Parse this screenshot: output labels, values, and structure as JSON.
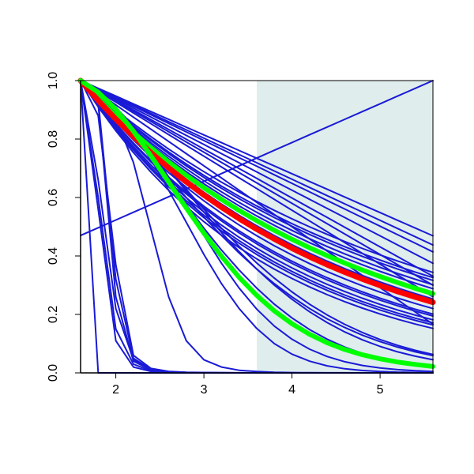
{
  "chart_data": {
    "type": "line",
    "title": "",
    "xlabel": "",
    "ylabel": "",
    "xlim": [
      1.6,
      5.6
    ],
    "ylim": [
      0,
      1
    ],
    "x_ticks": [
      2,
      3,
      4,
      5
    ],
    "x_tick_labels": [
      "2",
      "3",
      "4",
      "5"
    ],
    "y_ticks": [
      0.0,
      0.2,
      0.4,
      0.6,
      0.8,
      1.0
    ],
    "y_tick_labels": [
      "0.0",
      "0.2",
      "0.4",
      "0.6",
      "0.8",
      "1.0"
    ],
    "grid": false,
    "legend": "none",
    "shaded_region": {
      "x_from": 3.6,
      "x_to": 5.6,
      "color": "#dfeded"
    },
    "x_sample": [
      1.6,
      1.8,
      2.0,
      2.2,
      2.4,
      2.6,
      2.8,
      3.0,
      3.2,
      3.4,
      3.6,
      3.8,
      4.0,
      4.2,
      4.4,
      4.6,
      4.8,
      5.0,
      5.2,
      5.4,
      5.6
    ],
    "colors": {
      "blue": "#1a1ad6",
      "red": "#ff0000",
      "green": "#00ff00"
    },
    "series": [
      {
        "color": "blue",
        "width": 2,
        "values": [
          1.0,
          0.9665,
          0.9331,
          0.8996,
          0.8661,
          0.8326,
          0.7992,
          0.7657,
          0.7323,
          0.6988,
          0.6653,
          0.6318,
          0.5984,
          0.5649,
          0.5315,
          0.498,
          0.4645,
          0.4311,
          0.3976,
          0.3641,
          0.3307
        ]
      },
      {
        "color": "blue",
        "width": 2,
        "values": [
          1.0,
          0.9631,
          0.9261,
          0.8892,
          0.8522,
          0.8152,
          0.7783,
          0.7413,
          0.7044,
          0.6674,
          0.6305,
          0.5935,
          0.5566,
          0.5196,
          0.4826,
          0.4457,
          0.4087,
          0.3718,
          0.3348,
          0.2978,
          0.2609
        ]
      },
      {
        "color": "blue",
        "width": 2,
        "values": [
          1.0,
          0.9707,
          0.9414,
          0.9121,
          0.8828,
          0.8535,
          0.8242,
          0.7949,
          0.7656,
          0.7363,
          0.707,
          0.6777,
          0.6484,
          0.6191,
          0.5898,
          0.5605,
          0.5312,
          0.5019,
          0.4726,
          0.4434,
          0.4141
        ]
      },
      {
        "color": "blue",
        "width": 2,
        "values": [
          1.0,
          0.9734,
          0.9469,
          0.9203,
          0.8938,
          0.8672,
          0.8406,
          0.8141,
          0.7875,
          0.7609,
          0.7344,
          0.7078,
          0.6813,
          0.6547,
          0.6281,
          0.6016,
          0.575,
          0.5484,
          0.5219,
          0.4953,
          0.4688
        ]
      },
      {
        "color": "blue",
        "width": 2,
        "values": [
          1.0,
          0.9719,
          0.9438,
          0.9156,
          0.8875,
          0.8594,
          0.8313,
          0.8031,
          0.775,
          0.7469,
          0.7188,
          0.6906,
          0.6625,
          0.6344,
          0.6063,
          0.5781,
          0.55,
          0.5219,
          0.4938,
          0.4656,
          0.4375
        ]
      },
      {
        "color": "blue",
        "width": 2,
        "values": [
          1.0,
          0.9688,
          0.9375,
          0.9063,
          0.875,
          0.8438,
          0.8125,
          0.7813,
          0.75,
          0.7188,
          0.6875,
          0.6563,
          0.625,
          0.5938,
          0.5625,
          0.5313,
          0.5,
          0.4688,
          0.4375,
          0.4063,
          0.375
        ]
      },
      {
        "color": "blue",
        "width": 2,
        "values": [
          1.0,
          0.965,
          0.93,
          0.895,
          0.86,
          0.825,
          0.79,
          0.755,
          0.72,
          0.685,
          0.65,
          0.615,
          0.58,
          0.545,
          0.51,
          0.475,
          0.44,
          0.405,
          0.37,
          0.335,
          0.3
        ]
      },
      {
        "color": "blue",
        "width": 2,
        "values": [
          1.0,
          0.9583,
          0.9167,
          0.875,
          0.8333,
          0.7917,
          0.75,
          0.7083,
          0.6667,
          0.625,
          0.5833,
          0.5417,
          0.5,
          0.4583,
          0.4167,
          0.375,
          0.3333,
          0.2917,
          0.25,
          0.2083,
          0.1667
        ]
      },
      {
        "color": "blue",
        "width": 2,
        "values": [
          1.0,
          0.948,
          0.8988,
          0.8521,
          0.8078,
          0.7658,
          0.726,
          0.6883,
          0.6525,
          0.6186,
          0.5865,
          0.556,
          0.5271,
          0.4997,
          0.4737,
          0.4491,
          0.4258,
          0.4036,
          0.3827,
          0.3628,
          0.3439
        ]
      },
      {
        "color": "blue",
        "width": 2,
        "values": [
          1.0,
          0.9455,
          0.894,
          0.8453,
          0.7993,
          0.7557,
          0.7146,
          0.6756,
          0.6388,
          0.604,
          0.5711,
          0.54,
          0.5106,
          0.4828,
          0.4565,
          0.4316,
          0.4081,
          0.3859,
          0.3649,
          0.345,
          0.3262
        ]
      },
      {
        "color": "blue",
        "width": 2,
        "values": [
          1.0,
          0.9441,
          0.8913,
          0.8415,
          0.7945,
          0.7501,
          0.7082,
          0.6686,
          0.6313,
          0.596,
          0.5627,
          0.5313,
          0.5016,
          0.4736,
          0.4471,
          0.4221,
          0.3985,
          0.3763,
          0.3552,
          0.3354,
          0.3166
        ]
      },
      {
        "color": "blue",
        "width": 2,
        "values": [
          1.0,
          0.9418,
          0.887,
          0.8354,
          0.7868,
          0.7411,
          0.698,
          0.6574,
          0.6192,
          0.5831,
          0.5492,
          0.5173,
          0.4872,
          0.4589,
          0.4322,
          0.407,
          0.3834,
          0.3611,
          0.3401,
          0.3203,
          0.3017
        ]
      },
      {
        "color": "blue",
        "width": 2,
        "values": [
          1.0,
          0.9397,
          0.883,
          0.8298,
          0.7797,
          0.7327,
          0.6885,
          0.647,
          0.608,
          0.5713,
          0.5368,
          0.5045,
          0.474,
          0.4454,
          0.4186,
          0.3933,
          0.3696,
          0.3473,
          0.3264,
          0.3067,
          0.2882
        ]
      },
      {
        "color": "blue",
        "width": 2,
        "values": [
          1.0,
          0.9367,
          0.8773,
          0.8217,
          0.7697,
          0.7209,
          0.6753,
          0.6325,
          0.5924,
          0.5549,
          0.5198,
          0.4868,
          0.456,
          0.4271,
          0.4001,
          0.3747,
          0.351,
          0.3288,
          0.3079,
          0.2884,
          0.2702
        ]
      },
      {
        "color": "blue",
        "width": 2,
        "values": [
          1.0,
          0.9336,
          0.8716,
          0.8137,
          0.7597,
          0.7093,
          0.6622,
          0.6182,
          0.5772,
          0.5388,
          0.5031,
          0.4697,
          0.4385,
          0.4094,
          0.3822,
          0.3568,
          0.3331,
          0.311,
          0.2904,
          0.2711,
          0.2531
        ]
      },
      {
        "color": "blue",
        "width": 2,
        "values": [
          1.0,
          0.9271,
          0.8595,
          0.7969,
          0.7388,
          0.6849,
          0.635,
          0.5887,
          0.5458,
          0.506,
          0.4691,
          0.4349,
          0.4032,
          0.3738,
          0.3465,
          0.3213,
          0.2979,
          0.2761,
          0.256,
          0.2373,
          0.22
        ]
      },
      {
        "color": "blue",
        "width": 2,
        "values": [
          1.0,
          0.9229,
          0.8518,
          0.7861,
          0.7255,
          0.6696,
          0.618,
          0.5703,
          0.5264,
          0.4858,
          0.4484,
          0.4138,
          0.3819,
          0.3525,
          0.3253,
          0.3002,
          0.2771,
          0.2557,
          0.236,
          0.2178,
          0.201
        ]
      },
      {
        "color": "blue",
        "width": 2,
        "values": [
          1.0,
          0.9182,
          0.8431,
          0.7741,
          0.7108,
          0.6527,
          0.5993,
          0.5503,
          0.5053,
          0.4639,
          0.426,
          0.3911,
          0.3592,
          0.3298,
          0.3028,
          0.278,
          0.2553,
          0.2344,
          0.2152,
          0.1976,
          0.1815
        ]
      },
      {
        "color": "blue",
        "width": 2,
        "values": [
          1.0,
          0.9136,
          0.8347,
          0.7626,
          0.6967,
          0.6365,
          0.5815,
          0.5312,
          0.4853,
          0.4434,
          0.4051,
          0.3701,
          0.3381,
          0.3089,
          0.2822,
          0.2578,
          0.2356,
          0.2152,
          0.1966,
          0.1796,
          0.1641
        ]
      },
      {
        "color": "blue",
        "width": 2,
        "values": [
          1.0,
          0.9101,
          0.8284,
          0.7539,
          0.6862,
          0.6245,
          0.5684,
          0.5173,
          0.4708,
          0.4285,
          0.39,
          0.3549,
          0.323,
          0.294,
          0.2676,
          0.2435,
          0.2216,
          0.2017,
          0.1836,
          0.1671,
          0.1521
        ]
      },
      {
        "color": "blue",
        "width": 2,
        "values": [
          1.0,
          0.9156,
          0.8383,
          0.7675,
          0.7027,
          0.6434,
          0.5891,
          0.5393,
          0.4938,
          0.4521,
          0.4139,
          0.379,
          0.347,
          0.3177,
          0.2909,
          0.2663,
          0.2438,
          0.2232,
          0.2044,
          0.1871,
          0.1713
        ]
      },
      {
        "color": "blue",
        "width": 2,
        "values": [
          1.0,
          0.9216,
          0.8491,
          0.7825,
          0.721,
          0.6643,
          0.6122,
          0.5641,
          0.5198,
          0.4789,
          0.4413,
          0.4067,
          0.3747,
          0.3453,
          0.3182,
          0.2932,
          0.2701,
          0.2489,
          0.2294,
          0.2113,
          0.1947
        ]
      },
      {
        "color": "blue",
        "width": 2,
        "values": [
          1.0,
          0.9565,
          0.9067,
          0.841,
          0.768,
          0.695,
          0.622,
          0.55,
          0.48,
          0.415,
          0.355,
          0.3,
          0.252,
          0.209,
          0.172,
          0.14,
          0.113,
          0.0905,
          0.072,
          0.057,
          0.045
        ]
      },
      {
        "color": "blue",
        "width": 2,
        "values": [
          1.0,
          0.957,
          0.908,
          0.845,
          0.77,
          0.698,
          0.628,
          0.56,
          0.495,
          0.433,
          0.376,
          0.324,
          0.277,
          0.235,
          0.198,
          0.166,
          0.138,
          0.114,
          0.094,
          0.077,
          0.063
        ]
      },
      {
        "color": "blue",
        "width": 2,
        "values": [
          1.0,
          0.95,
          0.895,
          0.825,
          0.745,
          0.66,
          0.575,
          0.495,
          0.42,
          0.352,
          0.29,
          0.235,
          0.188,
          0.148,
          0.115,
          0.088,
          0.0665,
          0.0495,
          0.0365,
          0.0265,
          0.019
        ]
      },
      {
        "color": "blue",
        "width": 2,
        "values": [
          1.0,
          0.947,
          0.885,
          0.815,
          0.74,
          0.67,
          0.6,
          0.533,
          0.47,
          0.41,
          0.355,
          0.305,
          0.26,
          0.22,
          0.185,
          0.155,
          0.129,
          0.107,
          0.088,
          0.072,
          0.059
        ]
      },
      {
        "color": "blue",
        "width": 2,
        "values": [
          1.0,
          0.95,
          0.89,
          0.818,
          0.73,
          0.625,
          0.515,
          0.405,
          0.305,
          0.22,
          0.152,
          0.1,
          0.064,
          0.04,
          0.024,
          0.014,
          0.008,
          0.0045,
          0.0025,
          0.0014,
          0.0008
        ]
      },
      {
        "color": "blue",
        "width": 2,
        "values": [
          1.0,
          0.955,
          0.902,
          0.84,
          0.76,
          0.67,
          0.57,
          0.47,
          0.375,
          0.29,
          0.218,
          0.16,
          0.115,
          0.081,
          0.056,
          0.038,
          0.0255,
          0.017,
          0.0112,
          0.0073,
          0.0048
        ]
      },
      {
        "color": "blue",
        "width": 2,
        "values": [
          1.0,
          0.955,
          0.87,
          0.72,
          0.49,
          0.26,
          0.11,
          0.045,
          0.02,
          0.009,
          0.0045,
          0.0022,
          0.0012,
          0.0006,
          0.0003,
          0.0002,
          0.0001,
          0.0,
          0.0,
          0.0,
          0.0
        ]
      },
      {
        "color": "blue",
        "width": 2,
        "values": [
          1.0,
          0.88,
          0.37,
          0.06,
          0.015,
          0.005,
          0.002,
          0.001,
          0.0005,
          0.0002,
          0.0001,
          0.0,
          0.0,
          0.0,
          0.0,
          0.0,
          0.0,
          0.0,
          0.0,
          0.0,
          0.0
        ]
      },
      {
        "color": "blue",
        "width": 2,
        "values": [
          1.0,
          0.92,
          0.26,
          0.04,
          0.01,
          0.003,
          0.001,
          0.0005,
          0.0002,
          0.0001,
          0.0,
          0.0,
          0.0,
          0.0,
          0.0,
          0.0,
          0.0,
          0.0,
          0.0,
          0.0,
          0.0
        ]
      },
      {
        "color": "blue",
        "width": 2,
        "values": [
          1.0,
          0.93,
          0.32,
          0.05,
          0.012,
          0.004,
          0.0015,
          0.0006,
          0.0003,
          0.0001,
          0.0,
          0.0,
          0.0,
          0.0,
          0.0,
          0.0,
          0.0,
          0.0,
          0.0,
          0.0,
          0.0
        ]
      },
      {
        "color": "blue",
        "width": 2,
        "values": [
          1.0,
          0.66,
          0.22,
          0.045,
          0.01,
          0.003,
          0.001,
          0.0003,
          0.0001,
          0.0,
          0.0,
          0.0,
          0.0,
          0.0,
          0.0,
          0.0,
          0.0,
          0.0,
          0.0,
          0.0,
          0.0
        ]
      },
      {
        "color": "blue",
        "width": 2,
        "values": [
          1.0,
          0.6,
          0.15,
          0.03,
          0.007,
          0.002,
          0.0006,
          0.0002,
          0.0001,
          0.0,
          0.0,
          0.0,
          0.0,
          0.0,
          0.0,
          0.0,
          0.0,
          0.0,
          0.0,
          0.0,
          0.0
        ]
      },
      {
        "color": "blue",
        "width": 2,
        "values": [
          1.0,
          0.56,
          0.11,
          0.02,
          0.005,
          0.0015,
          0.0004,
          0.0001,
          0.0,
          0.0,
          0.0,
          0.0,
          0.0,
          0.0,
          0.0,
          0.0,
          0.0,
          0.0,
          0.0,
          0.0,
          0.0
        ]
      },
      {
        "color": "blue",
        "width": 2,
        "values": [
          1.0,
          0.0,
          0.0,
          0.0,
          0.0,
          0.0,
          0.0,
          0.0,
          0.0,
          0.0,
          0.0,
          0.0,
          0.0,
          0.0,
          0.0,
          0.0,
          0.0,
          0.0,
          0.0,
          0.0,
          0.0
        ]
      },
      {
        "color": "blue",
        "width": 2,
        "values": [
          0.47,
          0.4965,
          0.523,
          0.5495,
          0.576,
          0.6025,
          0.629,
          0.6555,
          0.682,
          0.7085,
          0.735,
          0.7615,
          0.788,
          0.8145,
          0.841,
          0.8675,
          0.894,
          0.9205,
          0.947,
          0.9735,
          1.0
        ]
      },
      {
        "color": "green",
        "width": 6,
        "values": [
          1.0,
          0.9368,
          0.8776,
          0.8221,
          0.7702,
          0.7215,
          0.6759,
          0.6332,
          0.5932,
          0.5557,
          0.5206,
          0.4877,
          0.4569,
          0.428,
          0.401,
          0.3756,
          0.3519,
          0.3296,
          0.3088,
          0.2893,
          0.271
        ]
      },
      {
        "color": "red",
        "width": 7,
        "values": [
          1.0,
          0.932,
          0.8681,
          0.8086,
          0.7531,
          0.7014,
          0.6534,
          0.6085,
          0.5667,
          0.5279,
          0.4917,
          0.458,
          0.4266,
          0.3973,
          0.3701,
          0.3447,
          0.3211,
          0.299,
          0.2785,
          0.2594,
          0.2416
        ]
      },
      {
        "color": "green",
        "width": 6,
        "values": [
          1.0,
          0.96,
          0.902,
          0.827,
          0.742,
          0.653,
          0.564,
          0.478,
          0.399,
          0.327,
          0.265,
          0.212,
          0.168,
          0.132,
          0.103,
          0.08,
          0.062,
          0.048,
          0.037,
          0.029,
          0.022
        ]
      }
    ]
  }
}
